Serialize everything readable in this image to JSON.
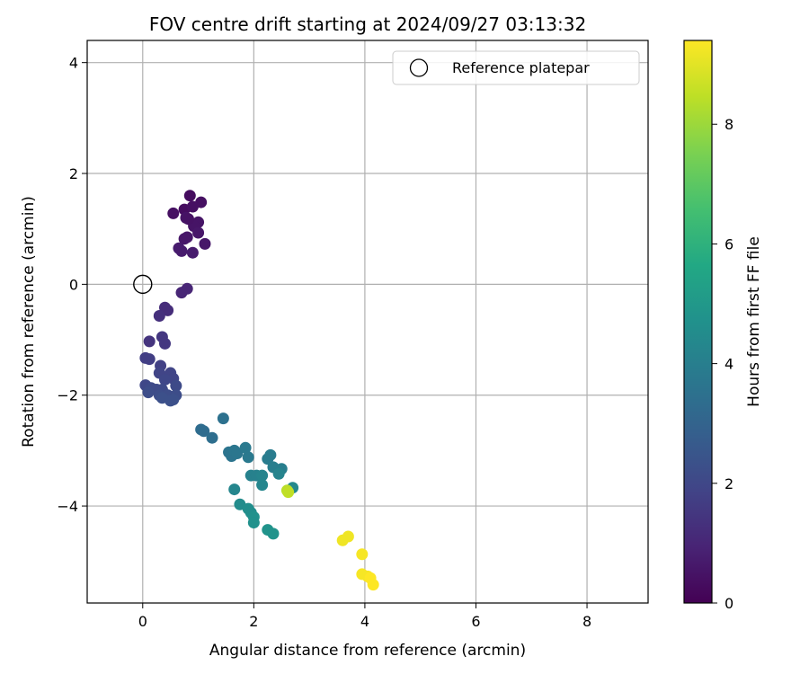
{
  "chart_data": {
    "type": "scatter",
    "title": "FOV centre drift starting at 2024/09/27 03:13:32",
    "xlabel": "Angular distance from reference (arcmin)",
    "ylabel": "Rotation from reference (arcmin)",
    "xlim": [
      -1.0,
      9.1
    ],
    "ylim": [
      -5.75,
      4.4
    ],
    "xticks": [
      0,
      2,
      4,
      6,
      8
    ],
    "yticks": [
      -4,
      -2,
      0,
      2,
      4
    ],
    "grid": true,
    "legend": {
      "placement": "top-right",
      "entries": [
        "Reference platepar"
      ]
    },
    "colorbar": {
      "label": "Hours from first FF file",
      "range": [
        0,
        9.4
      ],
      "ticks": [
        0,
        2,
        4,
        6,
        8
      ],
      "colormap": "viridis"
    },
    "reference_point": {
      "x": 0,
      "y": 0
    },
    "series": [
      {
        "points": [
          {
            "x": 0.85,
            "y": 1.6,
            "c": 0.3
          },
          {
            "x": 1.05,
            "y": 1.48,
            "c": 0.4
          },
          {
            "x": 0.75,
            "y": 1.35,
            "c": 0.3
          },
          {
            "x": 0.9,
            "y": 1.4,
            "c": 0.4
          },
          {
            "x": 0.55,
            "y": 1.28,
            "c": 0.4
          },
          {
            "x": 0.78,
            "y": 1.2,
            "c": 0.5
          },
          {
            "x": 1.0,
            "y": 1.12,
            "c": 0.5
          },
          {
            "x": 0.92,
            "y": 1.05,
            "c": 0.5
          },
          {
            "x": 0.82,
            "y": 1.18,
            "c": 0.45
          },
          {
            "x": 1.0,
            "y": 0.93,
            "c": 0.6
          },
          {
            "x": 0.8,
            "y": 0.85,
            "c": 0.6
          },
          {
            "x": 0.75,
            "y": 0.82,
            "c": 0.6
          },
          {
            "x": 1.12,
            "y": 0.73,
            "c": 0.6
          },
          {
            "x": 0.65,
            "y": 0.65,
            "c": 0.7
          },
          {
            "x": 0.7,
            "y": 0.6,
            "c": 0.7
          },
          {
            "x": 0.9,
            "y": 0.57,
            "c": 0.7
          },
          {
            "x": 0.8,
            "y": -0.08,
            "c": 1.0
          },
          {
            "x": 0.7,
            "y": -0.15,
            "c": 1.0
          },
          {
            "x": 0.4,
            "y": -0.42,
            "c": 1.2
          },
          {
            "x": 0.45,
            "y": -0.47,
            "c": 1.2
          },
          {
            "x": 0.3,
            "y": -0.57,
            "c": 1.3
          },
          {
            "x": 0.12,
            "y": -1.03,
            "c": 1.4
          },
          {
            "x": 0.35,
            "y": -0.95,
            "c": 1.5
          },
          {
            "x": 0.4,
            "y": -1.07,
            "c": 1.5
          },
          {
            "x": 0.05,
            "y": -1.33,
            "c": 1.7
          },
          {
            "x": 0.12,
            "y": -1.35,
            "c": 1.7
          },
          {
            "x": 0.32,
            "y": -1.47,
            "c": 1.8
          },
          {
            "x": 0.3,
            "y": -1.6,
            "c": 1.9
          },
          {
            "x": 0.5,
            "y": -1.6,
            "c": 1.9
          },
          {
            "x": 0.55,
            "y": -1.7,
            "c": 1.9
          },
          {
            "x": 0.4,
            "y": -1.72,
            "c": 2.0
          },
          {
            "x": 0.05,
            "y": -1.82,
            "c": 2.0
          },
          {
            "x": 0.15,
            "y": -1.87,
            "c": 2.1
          },
          {
            "x": 0.25,
            "y": -1.9,
            "c": 2.1
          },
          {
            "x": 0.35,
            "y": -1.9,
            "c": 2.1
          },
          {
            "x": 0.6,
            "y": -1.83,
            "c": 2.1
          },
          {
            "x": 0.1,
            "y": -1.95,
            "c": 2.2
          },
          {
            "x": 0.3,
            "y": -2.0,
            "c": 2.2
          },
          {
            "x": 0.45,
            "y": -2.0,
            "c": 2.2
          },
          {
            "x": 0.6,
            "y": -2.0,
            "c": 2.2
          },
          {
            "x": 0.35,
            "y": -2.05,
            "c": 2.3
          },
          {
            "x": 0.55,
            "y": -2.08,
            "c": 2.3
          },
          {
            "x": 0.5,
            "y": -2.1,
            "c": 2.3
          },
          {
            "x": 1.05,
            "y": -2.62,
            "c": 3.3
          },
          {
            "x": 1.1,
            "y": -2.65,
            "c": 3.3
          },
          {
            "x": 1.25,
            "y": -2.77,
            "c": 3.4
          },
          {
            "x": 1.45,
            "y": -2.42,
            "c": 3.5
          },
          {
            "x": 1.55,
            "y": -3.03,
            "c": 3.6
          },
          {
            "x": 1.6,
            "y": -3.1,
            "c": 3.6
          },
          {
            "x": 1.65,
            "y": -3.0,
            "c": 3.7
          },
          {
            "x": 1.7,
            "y": -3.05,
            "c": 3.7
          },
          {
            "x": 1.85,
            "y": -2.95,
            "c": 3.8
          },
          {
            "x": 1.9,
            "y": -3.12,
            "c": 3.8
          },
          {
            "x": 2.25,
            "y": -3.15,
            "c": 3.9
          },
          {
            "x": 2.3,
            "y": -3.08,
            "c": 3.9
          },
          {
            "x": 2.35,
            "y": -3.3,
            "c": 4.0
          },
          {
            "x": 2.5,
            "y": -3.33,
            "c": 4.0
          },
          {
            "x": 1.95,
            "y": -3.45,
            "c": 4.1
          },
          {
            "x": 2.05,
            "y": -3.45,
            "c": 4.1
          },
          {
            "x": 2.15,
            "y": -3.45,
            "c": 4.2
          },
          {
            "x": 2.45,
            "y": -3.42,
            "c": 4.2
          },
          {
            "x": 2.15,
            "y": -3.62,
            "c": 4.3
          },
          {
            "x": 1.65,
            "y": -3.7,
            "c": 4.3
          },
          {
            "x": 2.7,
            "y": -3.67,
            "c": 4.4
          },
          {
            "x": 1.75,
            "y": -3.97,
            "c": 4.5
          },
          {
            "x": 1.9,
            "y": -4.05,
            "c": 4.6
          },
          {
            "x": 1.95,
            "y": -4.12,
            "c": 4.6
          },
          {
            "x": 2.0,
            "y": -4.2,
            "c": 4.7
          },
          {
            "x": 2.0,
            "y": -4.3,
            "c": 4.7
          },
          {
            "x": 2.25,
            "y": -4.43,
            "c": 4.8
          },
          {
            "x": 2.35,
            "y": -4.5,
            "c": 4.8
          },
          {
            "x": 2.6,
            "y": -3.72,
            "c": 8.4
          },
          {
            "x": 2.62,
            "y": -3.75,
            "c": 8.5
          },
          {
            "x": 3.7,
            "y": -4.55,
            "c": 9.2
          },
          {
            "x": 3.6,
            "y": -4.62,
            "c": 9.2
          },
          {
            "x": 3.95,
            "y": -4.87,
            "c": 9.3
          },
          {
            "x": 3.95,
            "y": -5.23,
            "c": 9.3
          },
          {
            "x": 4.05,
            "y": -5.27,
            "c": 9.3
          },
          {
            "x": 4.1,
            "y": -5.3,
            "c": 9.4
          },
          {
            "x": 4.15,
            "y": -5.42,
            "c": 9.4
          }
        ]
      }
    ]
  }
}
